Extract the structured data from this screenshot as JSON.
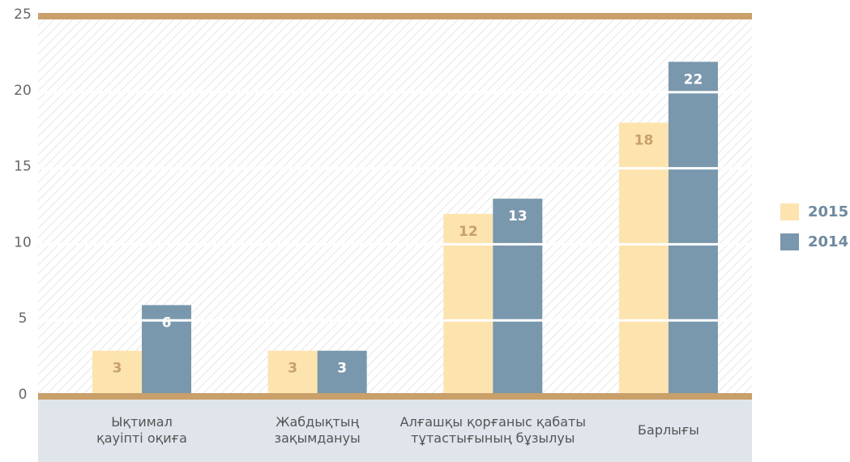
{
  "chart_data": {
    "type": "bar",
    "categories": [
      "Ықтимал\nқауіпті оқиға",
      "Жабдықтың\nзақымдануы",
      "Алғашқы қорғаныс қабаты\nтұтастығының бұзылуы",
      "Барлығы"
    ],
    "series": [
      {
        "name": "2015",
        "color": "#fde3ad",
        "label_color": "#c9a06a",
        "values": [
          3,
          3,
          12,
          18
        ]
      },
      {
        "name": "2014",
        "color": "#7a98ad",
        "label_color": "#ffffff",
        "values": [
          6,
          3,
          13,
          22
        ]
      }
    ],
    "ylim": [
      0,
      25
    ],
    "yticks": [
      0,
      5,
      10,
      15,
      20,
      25
    ],
    "grid": true,
    "legend": "right"
  }
}
